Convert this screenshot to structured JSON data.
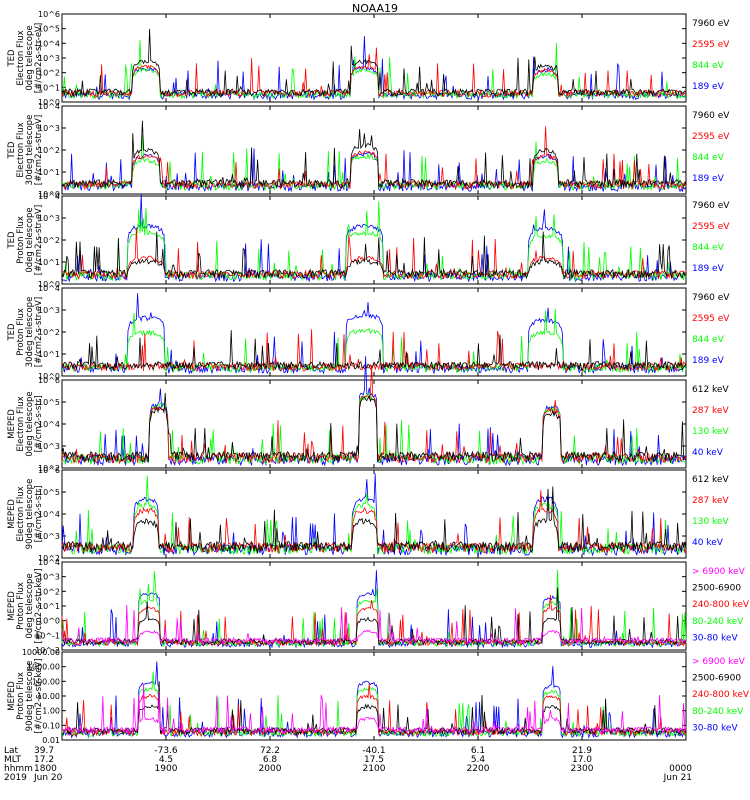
{
  "title": "NOAA19",
  "colors": {
    "black": "#000000",
    "red": "#ff0000",
    "green": "#00ff00",
    "blue": "#0000ff",
    "magenta": "#ff00ff"
  },
  "chart_data": [
    {
      "type": "line",
      "id": "ted-e-0",
      "ylabel": [
        "TED",
        "Electron Flux",
        "0deg telescope",
        "[#/cm2-s-str-eV]"
      ],
      "yscale": "log",
      "ylim": [
        1,
        1000000
      ],
      "yticks": [
        "10^0",
        "10^1",
        "10^2",
        "10^3",
        "10^4",
        "10^5",
        "10^6"
      ],
      "legend": [
        {
          "label": "7960 eV",
          "color": "black"
        },
        {
          "label": "2595 eV",
          "color": "red"
        },
        {
          "label": "844 eV",
          "color": "green"
        },
        {
          "label": "189 eV",
          "color": "blue"
        }
      ],
      "passes": [
        {
          "center": 0.135,
          "width": 0.045,
          "peaks": [
            600,
            250,
            150,
            200
          ]
        },
        {
          "center": 0.485,
          "width": 0.045,
          "peaks": [
            600,
            250,
            150,
            200
          ]
        },
        {
          "center": 0.775,
          "width": 0.04,
          "peaks": [
            300,
            150,
            80,
            150
          ]
        }
      ]
    },
    {
      "type": "line",
      "id": "ted-e-30",
      "ylabel": [
        "TED",
        "Electron Flux",
        "30deg telescope",
        "[#/cm2-s-str-eV]"
      ],
      "yscale": "log",
      "ylim": [
        1,
        100000
      ],
      "yticks": [
        "10^0",
        "10^1",
        "10^2",
        "10^3",
        "10^4"
      ],
      "legend": [
        {
          "label": "7960 eV",
          "color": "black"
        },
        {
          "label": "2595 eV",
          "color": "red"
        },
        {
          "label": "844 eV",
          "color": "green"
        },
        {
          "label": "189 eV",
          "color": "blue"
        }
      ],
      "passes": [
        {
          "center": 0.135,
          "width": 0.045,
          "peaks": [
            300,
            150,
            80,
            150
          ]
        },
        {
          "center": 0.485,
          "width": 0.045,
          "peaks": [
            600,
            250,
            150,
            200
          ]
        },
        {
          "center": 0.775,
          "width": 0.04,
          "peaks": [
            300,
            150,
            80,
            150
          ]
        }
      ]
    },
    {
      "type": "line",
      "id": "ted-p-0",
      "ylabel": [
        "TED",
        "Proton Flux",
        "0deg telescope",
        "[#/cm2-s-str-eV]"
      ],
      "yscale": "log",
      "ylim": [
        1,
        100000
      ],
      "yticks": [
        "10^0",
        "10^1",
        "10^2",
        "10^3",
        "10^4"
      ],
      "legend": [
        {
          "label": "7960 eV",
          "color": "black"
        },
        {
          "label": "2595 eV",
          "color": "red"
        },
        {
          "label": "844 eV",
          "color": "green"
        },
        {
          "label": "189 eV",
          "color": "blue"
        }
      ],
      "passes": [
        {
          "center": 0.135,
          "width": 0.06,
          "peaks": [
            20,
            30,
            800,
            2000
          ]
        },
        {
          "center": 0.485,
          "width": 0.06,
          "peaks": [
            20,
            30,
            800,
            2000
          ]
        },
        {
          "center": 0.775,
          "width": 0.055,
          "peaks": [
            20,
            30,
            600,
            1500
          ]
        }
      ]
    },
    {
      "type": "line",
      "id": "ted-p-30",
      "ylabel": [
        "TED",
        "Proton Flux",
        "30deg telescope",
        "[#/cm2-s-str-eV]"
      ],
      "yscale": "log",
      "ylim": [
        1,
        100000
      ],
      "yticks": [
        "10^0",
        "10^1",
        "10^2",
        "10^3",
        "10^4"
      ],
      "legend": [
        {
          "label": "7960 eV",
          "color": "black"
        },
        {
          "label": "2595 eV",
          "color": "red"
        },
        {
          "label": "844 eV",
          "color": "green"
        },
        {
          "label": "189 eV",
          "color": "blue"
        }
      ],
      "passes": [
        {
          "center": 0.135,
          "width": 0.06,
          "peaks": [
            0,
            0,
            300,
            2000
          ]
        },
        {
          "center": 0.485,
          "width": 0.06,
          "peaks": [
            0,
            0,
            400,
            3000
          ]
        },
        {
          "center": 0.775,
          "width": 0.055,
          "peaks": [
            0,
            0,
            300,
            1500
          ]
        }
      ]
    },
    {
      "type": "line",
      "id": "meped-e-0",
      "ylabel": [
        "MEPED",
        "Electron Flux",
        "0deg telescope",
        "[#/cm2-s-str]"
      ],
      "yscale": "log",
      "ylim": [
        100,
        1000000
      ],
      "yticks": [
        "10^2",
        "10^3",
        "10^4",
        "10^5",
        "10^6"
      ],
      "legend": [
        {
          "label": "612 keV",
          "color": "black"
        },
        {
          "label": "287 keV",
          "color": "red"
        },
        {
          "label": "130 keV",
          "color": "green"
        },
        {
          "label": "40 keV",
          "color": "blue"
        }
      ],
      "passes": [
        {
          "center": 0.155,
          "width": 0.03,
          "peaks": [
            50000,
            60000,
            70000,
            80000
          ]
        },
        {
          "center": 0.49,
          "width": 0.03,
          "peaks": [
            150000,
            180000,
            200000,
            300000
          ]
        },
        {
          "center": 0.785,
          "width": 0.03,
          "peaks": [
            30000,
            40000,
            50000,
            60000
          ]
        }
      ]
    },
    {
      "type": "line",
      "id": "meped-e-90",
      "ylabel": [
        "MEPED",
        "Electron Flux",
        "90deg telescope",
        "[#/cm2-s-str]"
      ],
      "yscale": "log",
      "ylim": [
        100,
        1000000
      ],
      "yticks": [
        "10^2",
        "10^3",
        "10^4",
        "10^5",
        "10^6"
      ],
      "legend": [
        {
          "label": "612 keV",
          "color": "black"
        },
        {
          "label": "287 keV",
          "color": "red"
        },
        {
          "label": "130 keV",
          "color": "green"
        },
        {
          "label": "40 keV",
          "color": "blue"
        }
      ],
      "passes": [
        {
          "center": 0.135,
          "width": 0.04,
          "peaks": [
            5000,
            15000,
            25000,
            50000
          ]
        },
        {
          "center": 0.485,
          "width": 0.04,
          "peaks": [
            5000,
            15000,
            25000,
            50000
          ]
        },
        {
          "center": 0.775,
          "width": 0.04,
          "peaks": [
            5000,
            15000,
            25000,
            50000
          ]
        }
      ]
    },
    {
      "type": "line",
      "id": "meped-p-0",
      "ylabel": [
        "MEPED",
        "Proton Flux",
        "0deg telescope",
        "[#/cm2-s-str-keV]"
      ],
      "yscale": "log",
      "ylim": [
        0.01,
        100000
      ],
      "yticks": [
        "10^-2",
        "10^-1",
        "10^0",
        "10^1",
        "10^2",
        "10^3",
        "10^4"
      ],
      "legend": [
        {
          "label": "> 6900 keV",
          "color": "magenta"
        },
        {
          "label": "2500-6900",
          "color": "black"
        },
        {
          "label": "240-800 keV",
          "color": "red"
        },
        {
          "label": "80-240 keV",
          "color": "green"
        },
        {
          "label": "30-80 keV",
          "color": "blue"
        }
      ],
      "passes": [
        {
          "center": 0.14,
          "width": 0.035,
          "peaks": [
            0.3,
            3,
            20,
            80,
            300
          ]
        },
        {
          "center": 0.49,
          "width": 0.035,
          "peaks": [
            0.3,
            3,
            20,
            80,
            300
          ]
        },
        {
          "center": 0.785,
          "width": 0.03,
          "peaks": [
            0.3,
            3,
            20,
            50,
            150
          ]
        }
      ]
    },
    {
      "type": "line",
      "id": "meped-p-90",
      "ylabel": [
        "MEPED",
        "Proton Flux",
        "90deg telescope",
        "[#/cm2-s-str-keV]"
      ],
      "yscale": "log",
      "ylim": [
        0.01,
        10000
      ],
      "yticks": [
        "0.01",
        "0.10",
        "1.00",
        "10.00",
        "100.00",
        "1000.00",
        "10000.00"
      ],
      "legend": [
        {
          "label": "> 6900 keV",
          "color": "magenta"
        },
        {
          "label": "2500-6900",
          "color": "black"
        },
        {
          "label": "240-800 keV",
          "color": "red"
        },
        {
          "label": "80-240 keV",
          "color": "green"
        },
        {
          "label": "30-80 keV",
          "color": "blue"
        }
      ],
      "passes": [
        {
          "center": 0.14,
          "width": 0.035,
          "peaks": [
            0.3,
            2,
            10,
            30,
            80
          ]
        },
        {
          "center": 0.49,
          "width": 0.035,
          "peaks": [
            0.3,
            2,
            10,
            30,
            80
          ]
        },
        {
          "center": 0.785,
          "width": 0.03,
          "peaks": [
            0.3,
            2,
            10,
            20,
            50
          ]
        }
      ]
    }
  ],
  "xaxis": {
    "row_labels": [
      "Lat",
      "MLT",
      "hhmm",
      "2019"
    ],
    "ticks": [
      {
        "pos": 0.0,
        "lat": "39.7",
        "mlt": "17.2",
        "hhmm": "1800",
        "date": "Jun 20"
      },
      {
        "pos": 0.16667,
        "lat": "-73.6",
        "mlt": "4.5",
        "hhmm": "1900",
        "date": ""
      },
      {
        "pos": 0.33333,
        "lat": "72.2",
        "mlt": "6.8",
        "hhmm": "2000",
        "date": ""
      },
      {
        "pos": 0.5,
        "lat": "-40.1",
        "mlt": "17.5",
        "hhmm": "2100",
        "date": ""
      },
      {
        "pos": 0.66667,
        "lat": "6.1",
        "mlt": "5.4",
        "hhmm": "2200",
        "date": ""
      },
      {
        "pos": 0.83333,
        "lat": "21.9",
        "mlt": "17.0",
        "hhmm": "2300",
        "date": ""
      },
      {
        "pos": 1.0,
        "lat": "",
        "mlt": "",
        "hhmm": "0000",
        "date": "Jun 21"
      }
    ]
  }
}
